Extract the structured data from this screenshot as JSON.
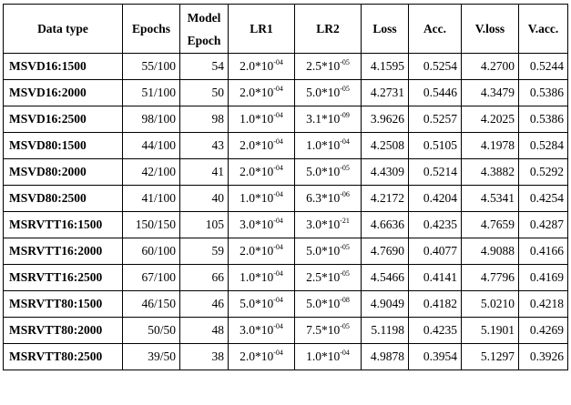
{
  "table": {
    "headers": [
      "Data type",
      "Epochs",
      "Model Epoch",
      "LR1",
      "LR2",
      "Loss",
      "Acc.",
      "V.loss",
      "V.acc."
    ],
    "rows": [
      {
        "data_type": "MSVD16:1500",
        "epochs": "55/100",
        "model_epoch": "54",
        "lr1_mant": "2.0*10",
        "lr1_exp": "-04",
        "lr2_mant": "2.5*10",
        "lr2_exp": "-05",
        "loss": "4.1595",
        "acc": "0.5254",
        "vloss": "4.2700",
        "vacc": "0.5244"
      },
      {
        "data_type": "MSVD16:2000",
        "epochs": "51/100",
        "model_epoch": "50",
        "lr1_mant": "2.0*10",
        "lr1_exp": "-04",
        "lr2_mant": "5.0*10",
        "lr2_exp": "-05",
        "loss": "4.2731",
        "acc": "0.5446",
        "vloss": "4.3479",
        "vacc": "0.5386"
      },
      {
        "data_type": "MSVD16:2500",
        "epochs": "98/100",
        "model_epoch": "98",
        "lr1_mant": "1.0*10",
        "lr1_exp": "-04",
        "lr2_mant": "3.1*10",
        "lr2_exp": "-09",
        "loss": "3.9626",
        "acc": "0.5257",
        "vloss": "4.2025",
        "vacc": "0.5386"
      },
      {
        "data_type": "MSVD80:1500",
        "epochs": "44/100",
        "model_epoch": "43",
        "lr1_mant": "2.0*10",
        "lr1_exp": "-04",
        "lr2_mant": "1.0*10",
        "lr2_exp": "-04",
        "loss": "4.2508",
        "acc": "0.5105",
        "vloss": "4.1978",
        "vacc": "0.5284"
      },
      {
        "data_type": "MSVD80:2000",
        "epochs": "42/100",
        "model_epoch": "41",
        "lr1_mant": "2.0*10",
        "lr1_exp": "-04",
        "lr2_mant": "5.0*10",
        "lr2_exp": "-05",
        "loss": "4.4309",
        "acc": "0.5214",
        "vloss": "4.3882",
        "vacc": "0.5292"
      },
      {
        "data_type": "MSVD80:2500",
        "epochs": "41/100",
        "model_epoch": "40",
        "lr1_mant": "1.0*10",
        "lr1_exp": "-04",
        "lr2_mant": "6.3*10",
        "lr2_exp": "-06",
        "loss": "4.2172",
        "acc": "0.4204",
        "vloss": "4.5341",
        "vacc": "0.4254"
      },
      {
        "data_type": "MSRVTT16:1500",
        "epochs": "150/150",
        "model_epoch": "105",
        "lr1_mant": "3.0*10",
        "lr1_exp": "-04",
        "lr2_mant": "3.0*10",
        "lr2_exp": "-21",
        "loss": "4.6636",
        "acc": "0.4235",
        "vloss": "4.7659",
        "vacc": "0.4287"
      },
      {
        "data_type": "MSRVTT16:2000",
        "epochs": "60/100",
        "model_epoch": "59",
        "lr1_mant": "2.0*10",
        "lr1_exp": "-04",
        "lr2_mant": "5.0*10",
        "lr2_exp": "-05",
        "loss": "4.7690",
        "acc": "0.4077",
        "vloss": "4.9088",
        "vacc": "0.4166"
      },
      {
        "data_type": "MSRVTT16:2500",
        "epochs": "67/100",
        "model_epoch": "66",
        "lr1_mant": "1.0*10",
        "lr1_exp": "-04",
        "lr2_mant": "2.5*10",
        "lr2_exp": "-05",
        "loss": "4.5466",
        "acc": "0.4141",
        "vloss": "4.7796",
        "vacc": "0.4169"
      },
      {
        "data_type": "MSRVTT80:1500",
        "epochs": "46/150",
        "model_epoch": "46",
        "lr1_mant": "5.0*10",
        "lr1_exp": "-04",
        "lr2_mant": "5.0*10",
        "lr2_exp": "-08",
        "loss": "4.9049",
        "acc": "0.4182",
        "vloss": "5.0210",
        "vacc": "0.4218"
      },
      {
        "data_type": "MSRVTT80:2000",
        "epochs": "50/50",
        "model_epoch": "48",
        "lr1_mant": "3.0*10",
        "lr1_exp": "-04",
        "lr2_mant": "7.5*10",
        "lr2_exp": "-05",
        "loss": "5.1198",
        "acc": "0.4235",
        "vloss": "5.1901",
        "vacc": "0.4269"
      },
      {
        "data_type": "MSRVTT80:2500",
        "epochs": "39/50",
        "model_epoch": "38",
        "lr1_mant": "2.0*10",
        "lr1_exp": "-04",
        "lr2_mant": "1.0*10",
        "lr2_exp": "-04",
        "loss": "4.9878",
        "acc": "0.3954",
        "vloss": "5.1297",
        "vacc": "0.3926"
      }
    ]
  }
}
